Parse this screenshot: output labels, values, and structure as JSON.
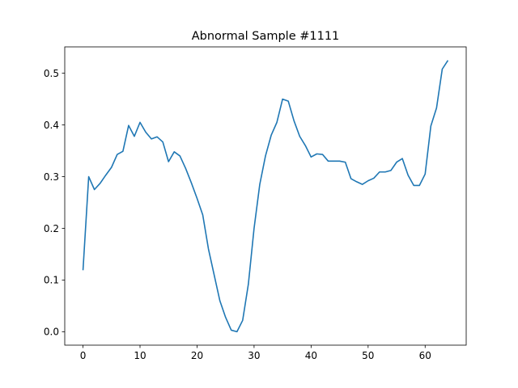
{
  "chart_data": {
    "type": "line",
    "title": "Abnormal Sample #1111",
    "xlabel": "",
    "ylabel": "",
    "xlim": [
      -3.2,
      67.2
    ],
    "ylim": [
      -0.026,
      0.551
    ],
    "xticks": [
      0,
      10,
      20,
      30,
      40,
      50,
      60
    ],
    "yticks": [
      0.0,
      0.1,
      0.2,
      0.3,
      0.4,
      0.5
    ],
    "xtick_labels": [
      "0",
      "10",
      "20",
      "30",
      "40",
      "50",
      "60"
    ],
    "ytick_labels": [
      "0.0",
      "0.1",
      "0.2",
      "0.3",
      "0.4",
      "0.5"
    ],
    "grid": false,
    "line_color": "#1f77b4",
    "series": [
      {
        "x": [
          0,
          1,
          2,
          3,
          4,
          5,
          6,
          7,
          8,
          9,
          10,
          11,
          12,
          13,
          14,
          15,
          16,
          17,
          18,
          19,
          20,
          21,
          22,
          23,
          24,
          25,
          26,
          27,
          28,
          29,
          30,
          31,
          32,
          33,
          34,
          35,
          36,
          37,
          38,
          39,
          40,
          41,
          42,
          43,
          44,
          45,
          46,
          47,
          48,
          49,
          50,
          51,
          52,
          53,
          54,
          55,
          56,
          57,
          58,
          59,
          60,
          61,
          62,
          63,
          64
        ],
        "values": [
          0.119,
          0.3,
          0.275,
          0.287,
          0.303,
          0.318,
          0.343,
          0.349,
          0.399,
          0.378,
          0.405,
          0.386,
          0.373,
          0.377,
          0.367,
          0.329,
          0.348,
          0.34,
          0.316,
          0.288,
          0.258,
          0.226,
          0.16,
          0.11,
          0.06,
          0.028,
          0.003,
          0.0,
          0.022,
          0.092,
          0.2,
          0.285,
          0.34,
          0.38,
          0.405,
          0.45,
          0.446,
          0.408,
          0.378,
          0.36,
          0.338,
          0.344,
          0.343,
          0.33,
          0.33,
          0.33,
          0.328,
          0.296,
          0.29,
          0.285,
          0.292,
          0.297,
          0.309,
          0.309,
          0.312,
          0.328,
          0.335,
          0.303,
          0.283,
          0.283,
          0.305,
          0.398,
          0.433,
          0.508,
          0.525
        ]
      }
    ]
  }
}
